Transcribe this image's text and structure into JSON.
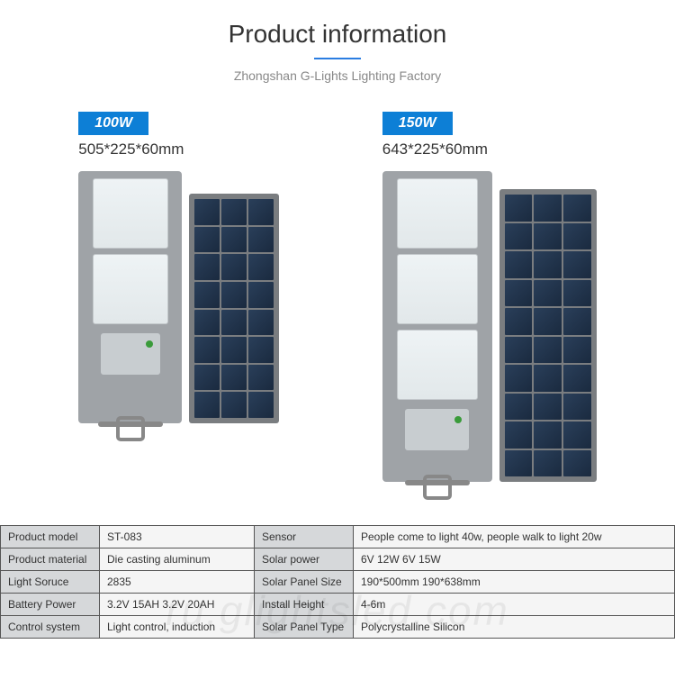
{
  "header": {
    "title": "Product information",
    "subtitle": "Zhongshan G-Lights Lighting Factory"
  },
  "products": [
    {
      "watt": "100W",
      "dims": "505*225*60mm",
      "led_count": 2,
      "solar_cells": 24
    },
    {
      "watt": "150W",
      "dims": "643*225*60mm",
      "led_count": 3,
      "solar_cells": 30
    }
  ],
  "specs": [
    {
      "l1": "Product model",
      "v1": "ST-083",
      "l2": "Sensor",
      "v2": "People come to light 40w, people walk to light 20w"
    },
    {
      "l1": "Product material",
      "v1": "Die casting aluminum",
      "l2": "Solar power",
      "v2": "6V 12W    6V 15W"
    },
    {
      "l1": "Light Soruce",
      "v1": "2835",
      "l2": "Solar Panel Size",
      "v2": "190*500mm    190*638mm"
    },
    {
      "l1": "Battery Power",
      "v1": "3.2V 15AH   3.2V 20AH",
      "l2": "Install Height",
      "v2": "4-6m"
    },
    {
      "l1": "Control system",
      "v1": "Light control, induction",
      "l2": "Solar Panel Type",
      "v2": "Polycrystalline Silicon"
    }
  ],
  "watermark": "ru.glightsled.com",
  "colors": {
    "badge_bg": "#0d7fd6",
    "accent": "#2a7de1",
    "lamp_body": "#9fa3a7",
    "solar_cell": "#1a2a3f"
  }
}
